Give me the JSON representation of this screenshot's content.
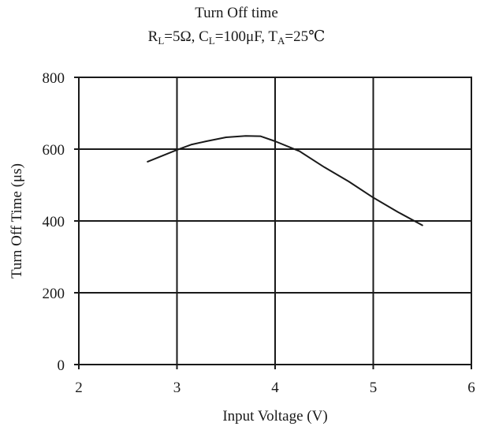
{
  "chart_data": {
    "type": "line",
    "title": "Turn Off time",
    "subtitle": {
      "parts": [
        {
          "text": "R",
          "sub": false
        },
        {
          "text": "L",
          "sub": true
        },
        {
          "text": "=5Ω, C",
          "sub": false
        },
        {
          "text": "L",
          "sub": true
        },
        {
          "text": "=100μF, T",
          "sub": false
        },
        {
          "text": "A",
          "sub": true
        },
        {
          "text": "=25℃",
          "sub": false
        }
      ]
    },
    "xlabel": "Input Voltage (V)",
    "ylabel": "Turn Off Time (μs)",
    "xlim": [
      2,
      6
    ],
    "ylim": [
      0,
      800
    ],
    "xticks": [
      2,
      3,
      4,
      5,
      6
    ],
    "yticks": [
      0,
      200,
      400,
      600,
      800
    ],
    "grid": true,
    "series": [
      {
        "color": "#1a1a1a",
        "x": [
          2.7,
          3.0,
          3.15,
          3.3,
          3.5,
          3.7,
          3.85,
          4.0,
          4.25,
          4.5,
          4.75,
          5.0,
          5.25,
          5.5
        ],
        "y": [
          565,
          598,
          613,
          622,
          633,
          637,
          636,
          622,
          594,
          550,
          510,
          465,
          425,
          388
        ]
      }
    ]
  }
}
